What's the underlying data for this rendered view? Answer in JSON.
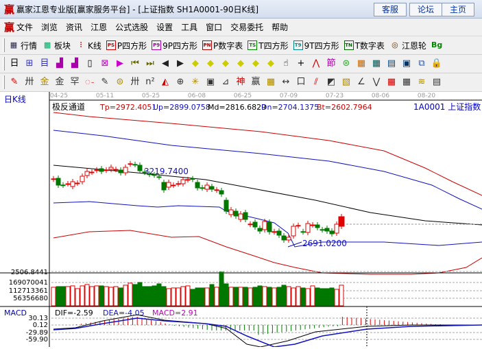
{
  "window": {
    "logo": "赢",
    "title": "赢家江恩专业版[赢家服务平台] - [上证指数  SH1A0001-90日K线]",
    "buttons": [
      "客服",
      "论坛",
      "主页"
    ]
  },
  "menu": {
    "logo": "赢",
    "items": [
      "文件",
      "浏览",
      "资讯",
      "江恩",
      "公式选股",
      "设置",
      "工具",
      "窗口",
      "交易委托",
      "帮助"
    ]
  },
  "toolbar1": [
    {
      "icon": "quote-table-icon",
      "label": "行情"
    },
    {
      "icon": "sector-icon",
      "label": "板块"
    },
    {
      "icon": "kline-icon",
      "label": "K线"
    },
    {
      "icon": "ps-icon",
      "label": "P四方形"
    },
    {
      "icon": "p9-icon",
      "label": "9P四方形"
    },
    {
      "icon": "pn-icon",
      "label": "P数字表"
    },
    {
      "icon": "ts-icon",
      "label": "T四方形"
    },
    {
      "icon": "t9-icon",
      "label": "9T四方形"
    },
    {
      "icon": "tn-icon",
      "label": "T数字表"
    },
    {
      "icon": "gann-wheel-icon",
      "label": "江恩轮"
    },
    {
      "icon": "big-icon",
      "label": ""
    }
  ],
  "toolbar2_icons": [
    "period-day-icon",
    "window-icon",
    "self-select-icon",
    "chart3-icon",
    "chart9-icon",
    "candle-type-icon",
    "cross-tool-icon",
    "color-icon",
    "first-icon",
    "last-icon",
    "prev-icon",
    "next-icon",
    "zoom-left-icon",
    "zoom-up-icon",
    "zoom-in-icon",
    "zoom-out-icon",
    "zoom-vertical-icon",
    "zoom-fit-icon",
    "hand-icon",
    "crosshair-icon",
    "line-icon",
    "node-icon",
    "grid-icon",
    "calendar-icon",
    "calculator-icon",
    "report-icon",
    "save-icon",
    "network-icon",
    "lock-icon"
  ],
  "period_label": "日",
  "toolbar3_icons": [
    "pen-icon",
    "parallel-icon",
    "gold-ratio-icon",
    "gold-ratio2-icon",
    "fan-icon",
    "spiral-icon",
    "pen2-icon",
    "circle-icon",
    "parallel2-icon",
    "n2-icon",
    "triangle-icon",
    "target-icon",
    "web-icon",
    "square-icon",
    "angle-icon",
    "god-icon",
    "win-icon",
    "ruler-icon",
    "width-icon",
    "box-icon",
    "fan-lines-icon",
    "square-fan-icon",
    "fan-grid-icon",
    "angle-line-icon",
    "wave-icon",
    "grid2-icon",
    "grid3-icon",
    "lines-icon",
    "table-icon"
  ],
  "chart": {
    "period": "日K线",
    "dates": [
      "04-25",
      "05-11",
      "05-25",
      "06-08",
      "06-25",
      "07-09",
      "07-23",
      "08-06",
      "08-20"
    ],
    "indicator": "极反通道",
    "tp": "Tp=2972.4051",
    "up": "Up=2899.0758",
    "md": "Md=2816.6829",
    "dn": "Dn=2704.1375",
    "bt": "Bt=2602.7964",
    "symbol": "1A0001  上证指数",
    "high_label": "3219.7400",
    "low_label": "2691.0200",
    "price_tick": "2506.8441",
    "vol_ticks": [
      "169070041",
      "112713361",
      "56356680"
    ],
    "macd": {
      "name": "MACD",
      "dif": "DIF=-2.59",
      "dea": "DEA=-4.05",
      "macd": "MACD=2.91",
      "ticks": [
        "30.13",
        "0.12",
        "-29.89",
        "-59.90"
      ]
    },
    "colors": {
      "up": "#e00000",
      "down": "#007800",
      "tp": "#cc0000",
      "channel": "#1010c0",
      "md": "#000000",
      "macd": "#c000c0"
    }
  },
  "chart_data": {
    "type": "candlestick",
    "candles_open_close": [
      [
        3160,
        3162
      ],
      [
        3166,
        3116
      ],
      [
        3117,
        3116
      ],
      [
        3126,
        3126
      ],
      [
        3106,
        3141
      ],
      [
        3131,
        3131
      ],
      [
        3141,
        3181
      ],
      [
        3186,
        3216
      ],
      [
        3211,
        3211
      ],
      [
        3225,
        3227
      ],
      [
        3236,
        3216
      ],
      [
        3225,
        3227
      ],
      [
        3231,
        3246
      ],
      [
        3231,
        3231
      ],
      [
        3226,
        3206
      ],
      [
        3206,
        3246
      ],
      [
        3270,
        3272
      ],
      [
        3267,
        3266
      ],
      [
        3261,
        3221
      ],
      [
        3212,
        3210
      ],
      [
        3197,
        3195
      ],
      [
        3192,
        3190
      ],
      [
        3177,
        3175
      ],
      [
        3136,
        3081
      ],
      [
        3101,
        3136
      ],
      [
        3116,
        3116
      ],
      [
        3125,
        3127
      ],
      [
        3126,
        3156
      ],
      [
        3155,
        3157
      ],
      [
        3163,
        3158
      ],
      [
        3136,
        3096
      ],
      [
        3097,
        3095
      ],
      [
        3086,
        3116
      ],
      [
        3106,
        3086
      ],
      [
        3080,
        3082
      ],
      [
        3076,
        3051
      ],
      [
        3006,
        2926
      ],
      [
        2901,
        2936
      ],
      [
        2926,
        2891
      ],
      [
        2866,
        2906
      ],
      [
        2916,
        2866
      ],
      [
        2830,
        2832
      ],
      [
        2846,
        2811
      ],
      [
        2801,
        2781
      ],
      [
        2791,
        2851
      ],
      [
        2846,
        2776
      ],
      [
        2775,
        2777
      ],
      [
        2781,
        2751
      ],
      [
        2746,
        2716
      ],
      [
        2716,
        2736
      ],
      [
        2746,
        2816
      ],
      [
        2820,
        2822
      ],
      [
        2777,
        2775
      ],
      [
        2771,
        2836
      ],
      [
        2826,
        2826
      ],
      [
        2826,
        2806
      ],
      [
        2792,
        2790
      ],
      [
        2801,
        2781
      ],
      [
        2781,
        2761
      ],
      [
        2766,
        2831
      ],
      [
        2816,
        2886
      ]
    ],
    "volumes": [
      135000000.0,
      140000000.0,
      140000000.0,
      140000000.0,
      145000000.0,
      125000000.0,
      145000000.0,
      155000000.0,
      140000000.0,
      145000000.0,
      145000000.0,
      140000000.0,
      135000000.0,
      140000000.0,
      130000000.0,
      150000000.0,
      165000000.0,
      155000000.0,
      170000000.0,
      140000000.0,
      140000000.0,
      145000000.0,
      160000000.0,
      140000000.0,
      125000000.0,
      130000000.0,
      130000000.0,
      140000000.0,
      145000000.0,
      120000000.0,
      130000000.0,
      130000000.0,
      130000000.0,
      155000000.0,
      135000000.0,
      245000000.0,
      160000000.0,
      135000000.0,
      135000000.0,
      135000000.0,
      135000000.0,
      130000000.0,
      135000000.0,
      145000000.0,
      140000000.0,
      135000000.0,
      130000000.0,
      135000000.0,
      150000000.0,
      140000000.0,
      130000000.0,
      140000000.0,
      130000000.0,
      125000000.0,
      145000000.0,
      130000000.0,
      125000000.0,
      125000000.0,
      130000000.0,
      120000000.0,
      150000000.0
    ]
  }
}
